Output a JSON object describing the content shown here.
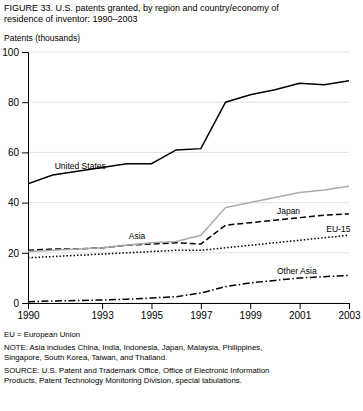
{
  "chart_data": {
    "type": "line",
    "title": "FIGURE 33. U.S. patents granted, by region and country/economy of\nresidence of inventor: 1990–2003",
    "ylabel": "Patents (thousands)",
    "x": [
      1990,
      1991,
      1992,
      1993,
      1994,
      1995,
      1996,
      1997,
      1998,
      1999,
      2000,
      2001,
      2002,
      2003
    ],
    "series": [
      {
        "name": "United States",
        "color": "#000000",
        "line_style": "solid",
        "values": [
          47.5,
          51.0,
          52.5,
          54.0,
          55.5,
          55.5,
          61.0,
          61.5,
          80.0,
          83.0,
          85.0,
          87.5,
          87.0,
          88.5
        ]
      },
      {
        "name": "Asia",
        "color": "#aaaaaa",
        "line_style": "solid",
        "values": [
          20.5,
          21.0,
          21.5,
          22.0,
          23.0,
          24.0,
          24.5,
          27.0,
          38.0,
          40.0,
          42.0,
          44.0,
          45.0,
          46.5
        ]
      },
      {
        "name": "Japan",
        "color": "#000000",
        "line_style": "dashed",
        "values": [
          21.0,
          21.5,
          21.5,
          22.0,
          23.0,
          23.5,
          24.0,
          23.5,
          31.0,
          32.0,
          33.0,
          34.0,
          35.0,
          35.5
        ]
      },
      {
        "name": "EU-15",
        "color": "#000000",
        "line_style": "dotted",
        "values": [
          18.0,
          18.5,
          19.0,
          19.5,
          20.0,
          20.5,
          21.0,
          21.0,
          22.0,
          23.0,
          24.0,
          25.0,
          26.0,
          27.0
        ]
      },
      {
        "name": "Other Asia",
        "color": "#000000",
        "line_style": "dashdot",
        "values": [
          0.5,
          0.8,
          1.0,
          1.2,
          1.5,
          2.0,
          2.5,
          4.0,
          6.5,
          8.0,
          9.0,
          10.0,
          10.5,
          11.0
        ]
      }
    ],
    "xlim": [
      1990,
      2003
    ],
    "ylim": [
      0,
      100
    ],
    "xticks": [
      1990,
      1993,
      1995,
      1997,
      1999,
      2001,
      2003
    ],
    "yticks": [
      0,
      20,
      40,
      60,
      80,
      100
    ],
    "grid": true,
    "annotations": [
      "EU = European Union",
      "NOTE: Asia includes China, India, Indonesia, Japan, Malaysia, Philippines,\nSingapore, South Korea, Taiwan, and Thailand.",
      "SOURCE: U.S. Patent and Trademark Office, Office of Electronic Information\nProducts, Patent Technology Monitoring Division, special tabulations."
    ]
  }
}
